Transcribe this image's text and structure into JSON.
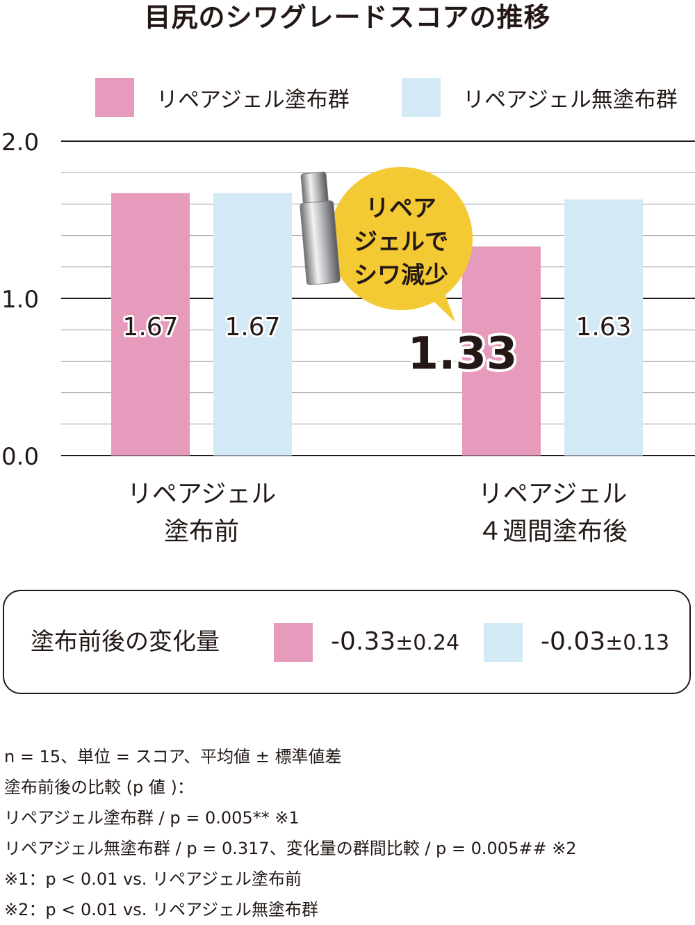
{
  "colors": {
    "applied": "#e69bbd",
    "not_applied": "#d3e9f5",
    "text": "#231815",
    "callout": "#f3c934"
  },
  "legend": [
    "リペアジェル塗布群",
    "リペアジェル無塗布群"
  ],
  "callout": {
    "lines": [
      "リペア",
      "ジェルで",
      "シワ減少"
    ]
  },
  "product_icon": "serum-bottle-icon",
  "change": {
    "title": "塗布前後の変化量",
    "applied": {
      "value": "-0.33",
      "sd": "±0.24"
    },
    "not_applied": {
      "value": "-0.03",
      "sd": "±0.13"
    }
  },
  "notes": [
    "n = 15、単位 = スコア、平均値 ± 標準値差",
    "塗布前後の比較 (p 値 )：",
    "リペアジェル塗布群 / p = 0.005** ※1",
    "リペアジェル無塗布群 / p = 0.317、変化量の群間比較 / p = 0.005## ※2",
    "※1：p < 0.01 vs. リペアジェル塗布前",
    "※2：p < 0.01 vs. リペアジェル無塗布群"
  ],
  "chart_data": {
    "type": "bar",
    "title": "目尻のシワグレードスコアの推移",
    "categories": [
      [
        "リペアジェル",
        "塗布前"
      ],
      [
        "リペアジェル",
        "４週間塗布後"
      ]
    ],
    "series": [
      {
        "name": "リペアジェル塗布群",
        "values": [
          1.67,
          1.33
        ],
        "labels": [
          "1.67",
          "1.33"
        ]
      },
      {
        "name": "リペアジェル無塗布群",
        "values": [
          1.67,
          1.63
        ],
        "labels": [
          "1.67",
          "1.63"
        ]
      }
    ],
    "ylim": [
      0,
      2
    ],
    "yticks": [
      "0.0",
      "1.0",
      "2.0"
    ],
    "minor_grid_step": 0.2,
    "grid": true,
    "legend_position": "top"
  }
}
